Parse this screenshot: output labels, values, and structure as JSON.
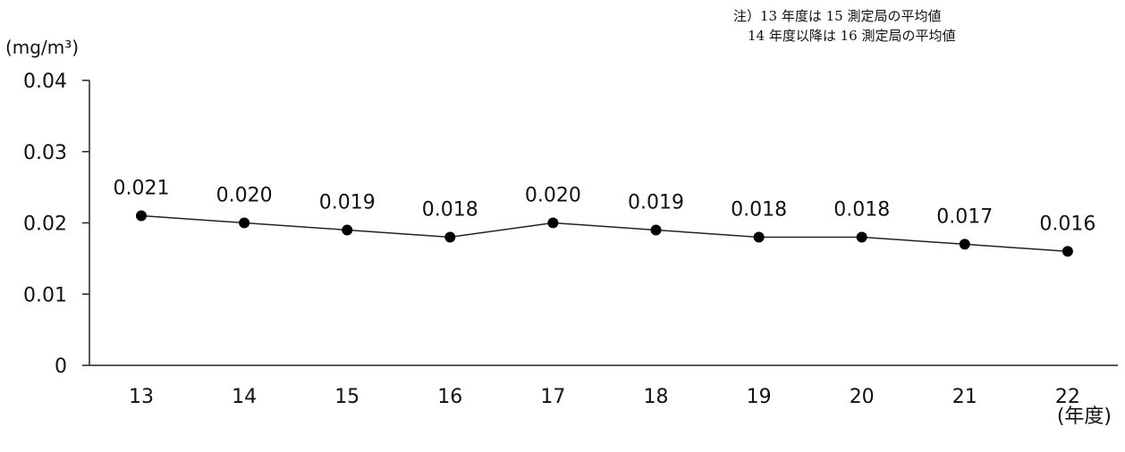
{
  "chart_data": {
    "type": "line",
    "ylabel": "(mg/m³)",
    "xlabel": "(年度)",
    "categories": [
      "13",
      "14",
      "15",
      "16",
      "17",
      "18",
      "19",
      "20",
      "21",
      "22"
    ],
    "series": [
      {
        "values": [
          0.021,
          0.02,
          0.019,
          0.018,
          0.02,
          0.019,
          0.018,
          0.018,
          0.017,
          0.016
        ]
      }
    ],
    "data_labels": [
      "0.021",
      "0.020",
      "0.019",
      "0.018",
      "0.020",
      "0.019",
      "0.018",
      "0.018",
      "0.017",
      "0.016"
    ],
    "y_ticks": [
      "0",
      "0.01",
      "0.02",
      "0.03",
      "0.04"
    ],
    "y_tick_values": [
      0,
      0.01,
      0.02,
      0.03,
      0.04
    ],
    "ylim": [
      0,
      0.04
    ],
    "grid": false,
    "line_color": "#222222",
    "marker_color": "#000000",
    "notes": [
      "注）13 年度は 15 測定局の平均値",
      "14 年度以降は 16 測定局の平均値"
    ]
  }
}
